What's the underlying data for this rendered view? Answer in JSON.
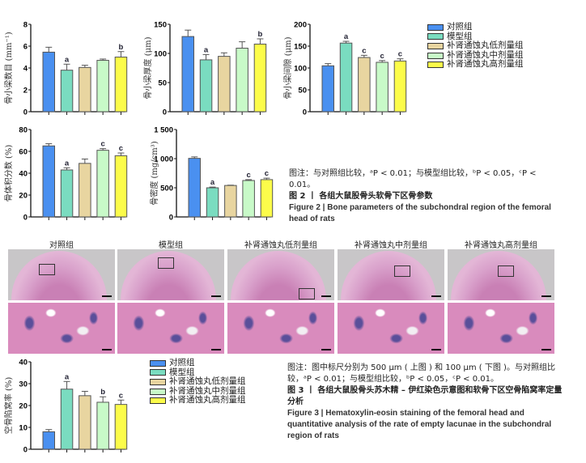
{
  "groups": [
    "对照组",
    "模型组",
    "补肾通蚀丸低剂量组",
    "补肾通蚀丸中剂量组",
    "补肾通蚀丸高剂量组"
  ],
  "colors": [
    "#4a90f0",
    "#7adcc0",
    "#e8d5a0",
    "#c8fac8",
    "#fcfc4a"
  ],
  "chart_data": [
    {
      "type": "bar",
      "ylabel": "骨小梁数目 (mm⁻¹)",
      "ylim": [
        0,
        8
      ],
      "ticks": [
        "0",
        "2",
        "4",
        "6",
        "8"
      ],
      "tickvals": [
        0,
        2,
        4,
        6,
        8
      ],
      "values": [
        5.45,
        3.8,
        4.05,
        4.7,
        5.0
      ],
      "errors": [
        0.45,
        0.55,
        0.2,
        0.12,
        0.5
      ],
      "sig": [
        "",
        "a",
        "",
        "",
        "b"
      ]
    },
    {
      "type": "bar",
      "ylabel": "骨小梁厚度 (μm)",
      "ylim": [
        0,
        150
      ],
      "ticks": [
        "0",
        "50",
        "100",
        "150"
      ],
      "tickvals": [
        0,
        50,
        100,
        150
      ],
      "values": [
        129,
        89,
        95,
        109,
        116
      ],
      "errors": [
        11,
        9,
        6,
        11,
        9
      ],
      "sig": [
        "",
        "a",
        "",
        "",
        "b"
      ]
    },
    {
      "type": "bar",
      "ylabel": "骨小梁间隙 (μm)",
      "ylim": [
        0,
        200
      ],
      "ticks": [
        "0",
        "50",
        "100",
        "150",
        "200"
      ],
      "tickvals": [
        0,
        50,
        100,
        150,
        200
      ],
      "values": [
        105,
        157,
        124,
        113,
        116
      ],
      "errors": [
        5,
        4,
        5,
        4,
        5
      ],
      "sig": [
        "",
        "a",
        "c",
        "c",
        "c"
      ]
    },
    {
      "type": "bar",
      "ylabel": "骨体积分数 (%)",
      "ylim": [
        0,
        80
      ],
      "ticks": [
        "0",
        "20",
        "40",
        "60",
        "80"
      ],
      "tickvals": [
        0,
        20,
        40,
        60,
        80
      ],
      "values": [
        65,
        43,
        49,
        61,
        56
      ],
      "errors": [
        2,
        2,
        4,
        1.5,
        2.5
      ],
      "sig": [
        "",
        "a",
        "",
        "c",
        "c"
      ]
    },
    {
      "type": "bar",
      "ylabel": "骨密度 (mg/cm³)",
      "ylim": [
        0,
        1500
      ],
      "ticks": [
        "0",
        "500",
        "1 000",
        "1 500"
      ],
      "tickvals": [
        0,
        500,
        1000,
        1500
      ],
      "values": [
        1005,
        500,
        540,
        625,
        640
      ],
      "errors": [
        25,
        12,
        5,
        15,
        25
      ],
      "sig": [
        "",
        "a",
        "",
        "c",
        "c"
      ]
    },
    {
      "type": "bar",
      "ylabel": "空骨陷窝率 (%)",
      "ylim": [
        0,
        40
      ],
      "ticks": [
        "0",
        "10",
        "20",
        "30",
        "40"
      ],
      "tickvals": [
        0,
        10,
        20,
        30,
        40
      ],
      "values": [
        8,
        27.5,
        24.5,
        21.5,
        20.5
      ],
      "errors": [
        1,
        3.5,
        2,
        2.5,
        2
      ],
      "sig": [
        "",
        "a",
        "",
        "b",
        "c"
      ]
    }
  ],
  "figure2": {
    "note": "图注：与对照组比较，ᵃP < 0.01；与模型组比较，ᵇP < 0.05，ᶜP < 0.01。",
    "title_cn": "图 2 丨 各组大鼠股骨头软骨下区骨参数",
    "title_en": "Figure 2  |  Bone parameters of the subchondral region of the femoral head of rats"
  },
  "figure3": {
    "note": "图注：图中标尺分别为 500 μm ( 上图 ) 和 100 μm ( 下图 )。与对照组比较，ᵃP < 0.01；与模型组比较，ᵇP < 0.05，ᶜP < 0.01。",
    "title_cn": "图 3 丨 各组大鼠股骨头苏木精 – 伊红染色示意图和软骨下区空骨陷窝率定量分析",
    "title_en": "Figure 3  |  Hematoxylin-eosin staining of the femoral head and quantitative analysis of the rate of empty lacunae in the subchondral region of rats"
  }
}
